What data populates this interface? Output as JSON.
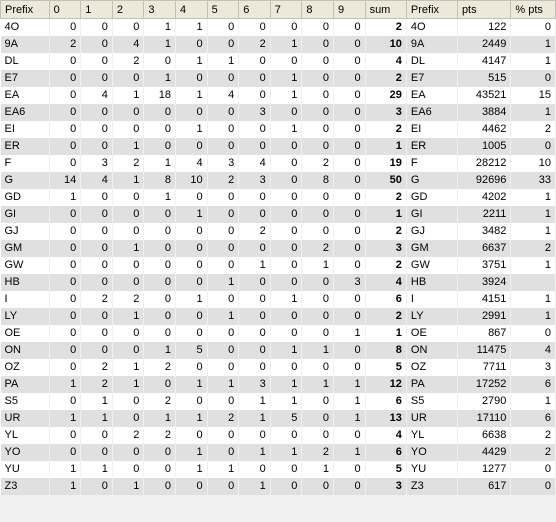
{
  "columns": [
    "Prefix",
    "0",
    "1",
    "2",
    "3",
    "4",
    "5",
    "6",
    "7",
    "8",
    "9",
    "sum",
    "Prefix",
    "pts",
    "% pts"
  ],
  "rows": [
    [
      "4O",
      0,
      0,
      0,
      1,
      1,
      0,
      0,
      0,
      0,
      0,
      2,
      "4O",
      122,
      0
    ],
    [
      "9A",
      2,
      0,
      4,
      1,
      0,
      0,
      2,
      1,
      0,
      0,
      10,
      "9A",
      2449,
      1
    ],
    [
      "DL",
      0,
      0,
      2,
      0,
      1,
      1,
      0,
      0,
      0,
      0,
      4,
      "DL",
      4147,
      1
    ],
    [
      "E7",
      0,
      0,
      0,
      1,
      0,
      0,
      0,
      1,
      0,
      0,
      2,
      "E7",
      515,
      0
    ],
    [
      "EA",
      0,
      4,
      1,
      18,
      1,
      4,
      0,
      1,
      0,
      0,
      29,
      "EA",
      43521,
      15
    ],
    [
      "EA6",
      0,
      0,
      0,
      0,
      0,
      0,
      3,
      0,
      0,
      0,
      3,
      "EA6",
      3884,
      1
    ],
    [
      "EI",
      0,
      0,
      0,
      0,
      1,
      0,
      0,
      1,
      0,
      0,
      2,
      "EI",
      4462,
      2
    ],
    [
      "ER",
      0,
      0,
      1,
      0,
      0,
      0,
      0,
      0,
      0,
      0,
      1,
      "ER",
      1005,
      0
    ],
    [
      "F",
      0,
      3,
      2,
      1,
      4,
      3,
      4,
      0,
      2,
      0,
      19,
      "F",
      28212,
      10
    ],
    [
      "G",
      14,
      4,
      1,
      8,
      10,
      2,
      3,
      0,
      8,
      0,
      50,
      "G",
      92696,
      33
    ],
    [
      "GD",
      1,
      0,
      0,
      1,
      0,
      0,
      0,
      0,
      0,
      0,
      2,
      "GD",
      4202,
      1
    ],
    [
      "GI",
      0,
      0,
      0,
      0,
      1,
      0,
      0,
      0,
      0,
      0,
      1,
      "GI",
      2211,
      1
    ],
    [
      "GJ",
      0,
      0,
      0,
      0,
      0,
      0,
      2,
      0,
      0,
      0,
      2,
      "GJ",
      3482,
      1
    ],
    [
      "GM",
      0,
      0,
      1,
      0,
      0,
      0,
      0,
      0,
      2,
      0,
      3,
      "GM",
      6637,
      2
    ],
    [
      "GW",
      0,
      0,
      0,
      0,
      0,
      0,
      1,
      0,
      1,
      0,
      2,
      "GW",
      3751,
      1
    ],
    [
      "HB",
      0,
      0,
      0,
      0,
      0,
      1,
      0,
      0,
      0,
      3,
      4,
      "HB",
      3924,
      ""
    ],
    [
      "I",
      0,
      2,
      2,
      0,
      1,
      0,
      0,
      1,
      0,
      0,
      6,
      "I",
      4151,
      1
    ],
    [
      "LY",
      0,
      0,
      1,
      0,
      0,
      1,
      0,
      0,
      0,
      0,
      2,
      "LY",
      2991,
      1
    ],
    [
      "OE",
      0,
      0,
      0,
      0,
      0,
      0,
      0,
      0,
      0,
      1,
      1,
      "OE",
      867,
      0
    ],
    [
      "ON",
      0,
      0,
      0,
      1,
      5,
      0,
      0,
      1,
      1,
      0,
      8,
      "ON",
      11475,
      4
    ],
    [
      "OZ",
      0,
      2,
      1,
      2,
      0,
      0,
      0,
      0,
      0,
      0,
      5,
      "OZ",
      7711,
      3
    ],
    [
      "PA",
      1,
      2,
      1,
      0,
      1,
      1,
      3,
      1,
      1,
      1,
      12,
      "PA",
      17252,
      6
    ],
    [
      "S5",
      0,
      1,
      0,
      2,
      0,
      0,
      1,
      1,
      0,
      1,
      6,
      "S5",
      2790,
      1
    ],
    [
      "UR",
      1,
      1,
      0,
      1,
      1,
      2,
      1,
      5,
      0,
      1,
      13,
      "UR",
      17110,
      6
    ],
    [
      "YL",
      0,
      0,
      2,
      2,
      0,
      0,
      0,
      0,
      0,
      0,
      4,
      "YL",
      6638,
      2
    ],
    [
      "YO",
      0,
      0,
      0,
      0,
      1,
      0,
      1,
      1,
      2,
      1,
      6,
      "YO",
      4429,
      2
    ],
    [
      "YU",
      1,
      1,
      0,
      0,
      1,
      1,
      0,
      0,
      1,
      0,
      5,
      "YU",
      1277,
      0
    ],
    [
      "Z3",
      1,
      0,
      1,
      0,
      0,
      0,
      1,
      0,
      0,
      0,
      3,
      "Z3",
      617,
      0
    ]
  ],
  "style": {
    "header_bg": "#ece9d8",
    "row_odd_bg": "#ffffff",
    "row_even_bg": "#e0e0e0",
    "border_color": "#c0c0c0",
    "font_size": 11
  }
}
